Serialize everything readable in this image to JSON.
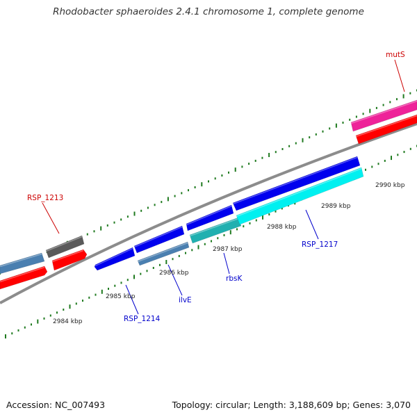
{
  "title": "Rhodobacter sphaeroides 2.4.1 chromosome 1, complete genome",
  "footer": {
    "accession": "Accession: NC_007493",
    "summary": "Topology: circular; Length: 3,188,609 bp; Genes: 3,070"
  },
  "colors": {
    "backbone": "#8c8c8c",
    "tick": "#1f7a1f",
    "forward_label": "#cc0000",
    "reverse_label": "#0000cc"
  },
  "tick_labels": [
    "2984 kbp",
    "2985 kbp",
    "2986 kbp",
    "2987 kbp",
    "2988 kbp",
    "2989 kbp",
    "2990 kbp"
  ],
  "gene_labels": [
    {
      "text": "RSP_1213",
      "color": "#cc0000"
    },
    {
      "text": "mutS",
      "color": "#cc0000"
    },
    {
      "text": "RSP_1214",
      "color": "#0000cc"
    },
    {
      "text": "ilvE",
      "color": "#0000cc"
    },
    {
      "text": "rbsK",
      "color": "#0000cc"
    },
    {
      "text": "RSP_1217",
      "color": "#0000cc"
    }
  ],
  "features": [
    {
      "name": "feature-steelblue-upper",
      "color": "#4a7fb0"
    },
    {
      "name": "feature-red-left",
      "color": "#ff0000"
    },
    {
      "name": "feature-gray",
      "color": "#5a5a5a"
    },
    {
      "name": "feature-red-small",
      "color": "#ff0000"
    },
    {
      "name": "feature-blue-1214",
      "color": "#0000ee"
    },
    {
      "name": "feature-blue-ilve",
      "color": "#0000ee"
    },
    {
      "name": "feature-steelblue-ilve",
      "color": "#4a7fb0"
    },
    {
      "name": "feature-blue-rbsk",
      "color": "#0000ee"
    },
    {
      "name": "feature-teal-rbsk",
      "color": "#20b0b0"
    },
    {
      "name": "feature-blue-1217",
      "color": "#0000ee"
    },
    {
      "name": "feature-cyan-1217",
      "color": "#00f0f0"
    },
    {
      "name": "feature-magenta-muts",
      "color": "#ee2299"
    },
    {
      "name": "feature-red-muts",
      "color": "#ff0000"
    }
  ]
}
